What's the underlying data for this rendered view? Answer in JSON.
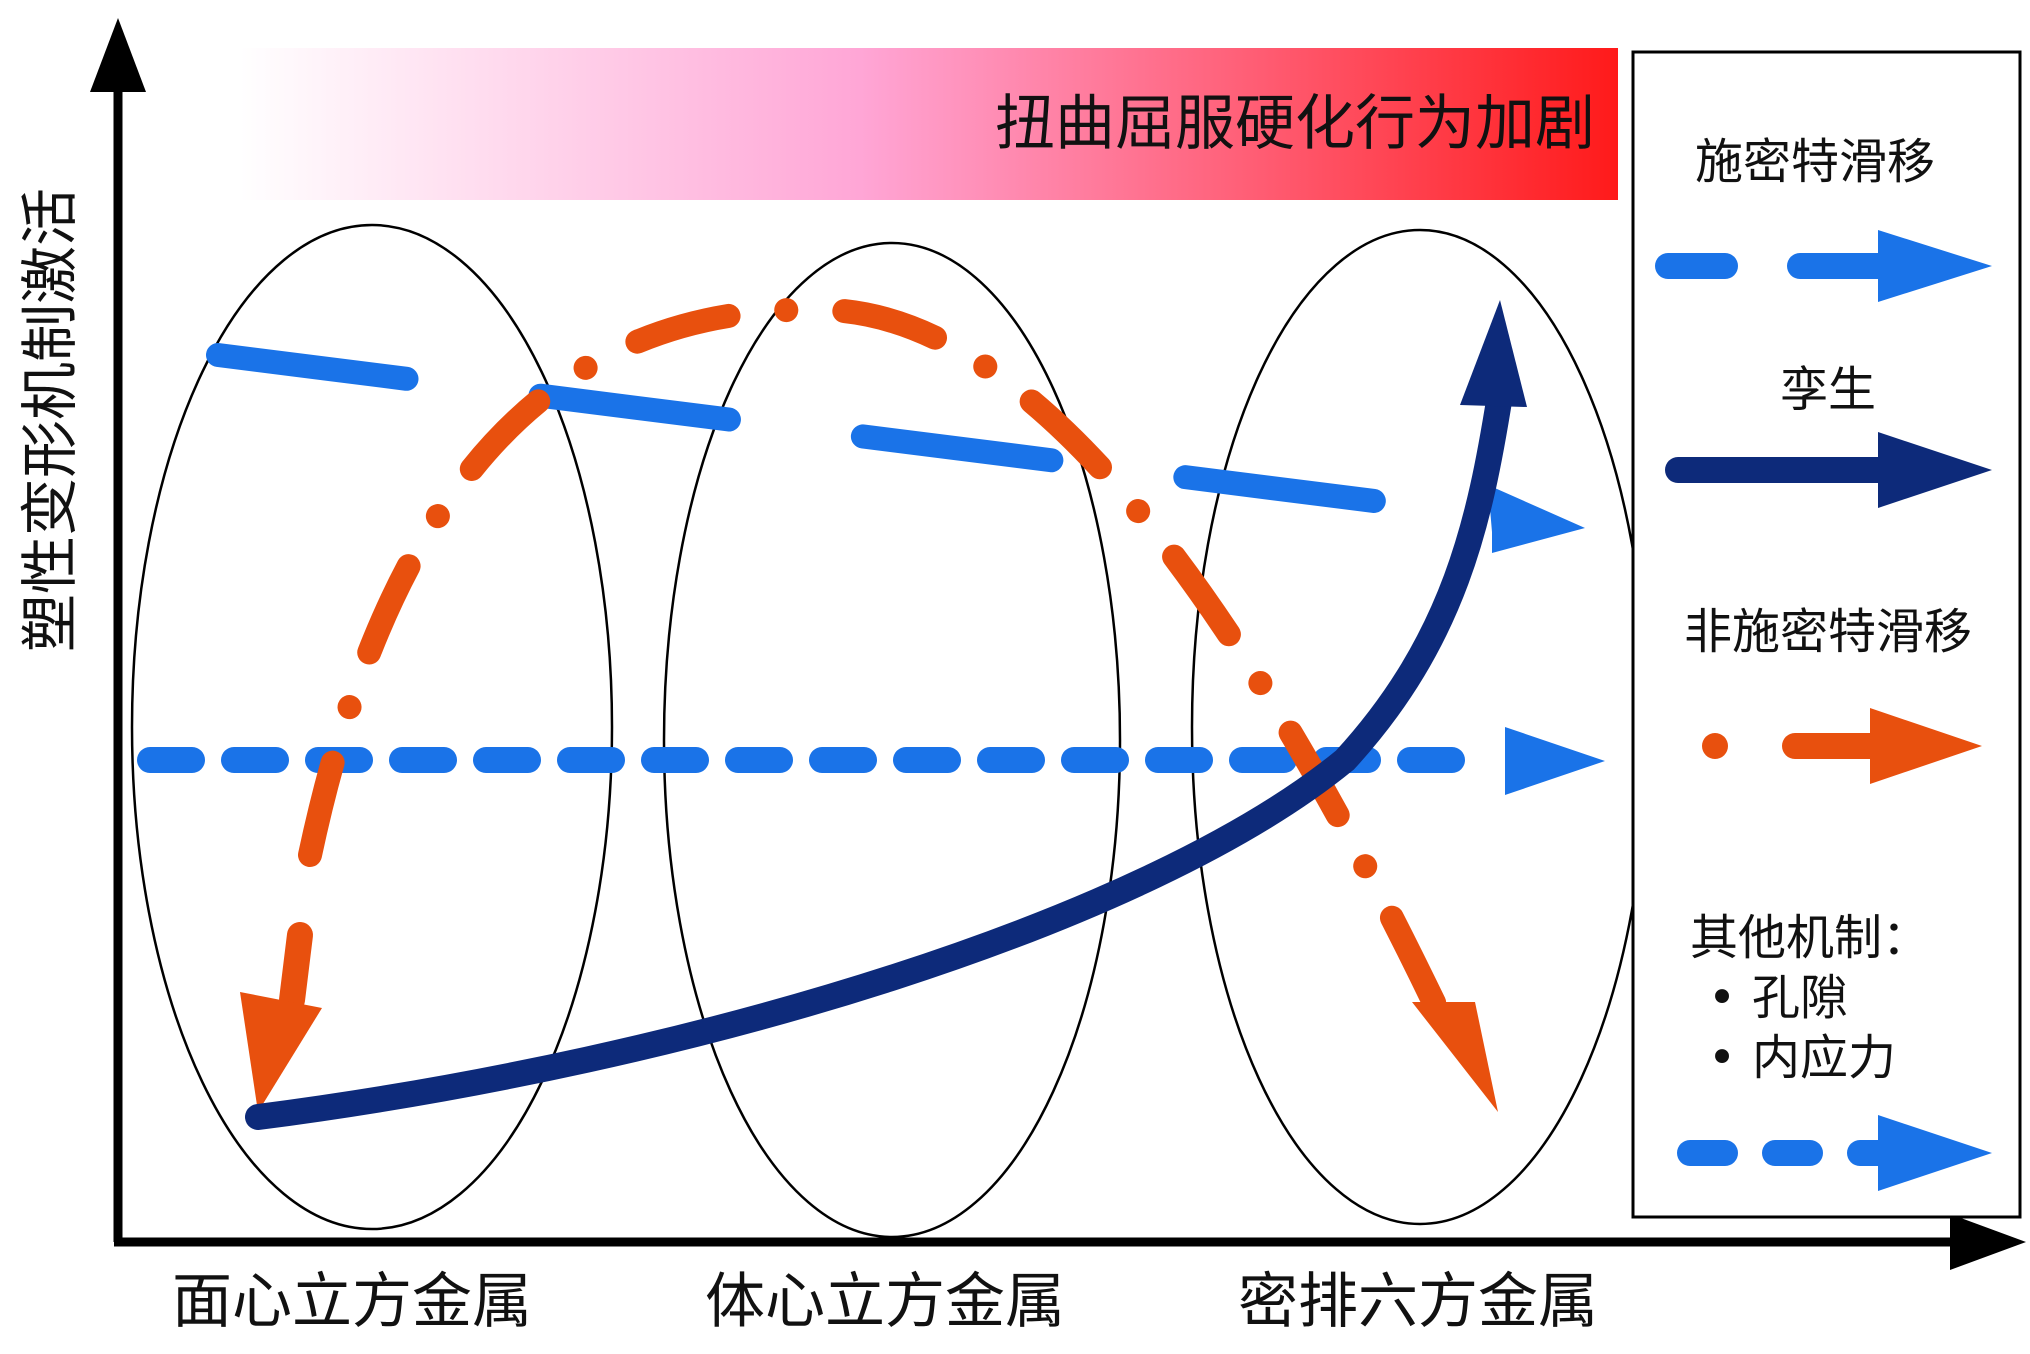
{
  "diagram": {
    "y_axis_label": "塑性变形机制激活",
    "x_categories": [
      "面心立方金属",
      "体心立方金属",
      "密排六方金属"
    ],
    "banner_text": "扭曲屈服硬化行为加剧",
    "banner_gradient": [
      "#ffffff",
      "#ff9fcf",
      "#ff1a1a"
    ]
  },
  "legend": {
    "schmid_label": "施密特滑移",
    "twin_label": "孪生",
    "non_schmid_label": "非施密特滑移",
    "other_label": "其他机制：",
    "other_items": [
      "孔隙",
      "内应力"
    ],
    "bullet": "•"
  },
  "colors": {
    "schmid": "#1a73e8",
    "twin": "#0d2a7a",
    "non_schmid": "#e8500e",
    "other": "#1a73e8",
    "axis": "#000000"
  }
}
